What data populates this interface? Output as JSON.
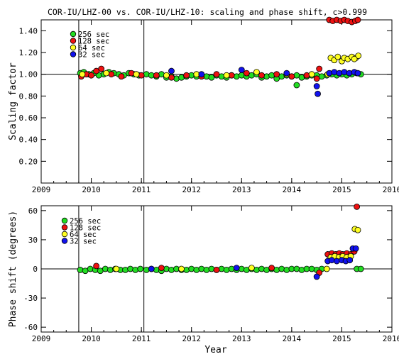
{
  "title": "COR-IU/LHZ-00 vs. COR-IU/LHZ-10: scaling and phase shift, c>0.999",
  "xlabel": "Year",
  "colors": {
    "s256": "#22dd22",
    "s128": "#ee1111",
    "s64": "#ffff22",
    "s32": "#1111ee"
  },
  "chart_data": [
    {
      "type": "scatter",
      "ylabel": "Scaling factor",
      "xlim": [
        2009,
        2016
      ],
      "ylim": [
        0,
        1.5
      ],
      "x_ticks": [
        "2009",
        "2010",
        "2011",
        "2012",
        "2013",
        "2014",
        "2015",
        "2016"
      ],
      "y_ticks": [
        "0.20",
        "0.40",
        "0.60",
        "0.80",
        "1.00",
        "1.20",
        "1.40"
      ],
      "vlines": [
        2009.75,
        2011.05
      ],
      "hline": 1.0,
      "legend": [
        "256 sec",
        "128 sec",
        "64 sec",
        "32 sec"
      ],
      "series": [
        {
          "name": "256 sec",
          "color": "#22dd22",
          "points": [
            [
              2009.78,
              1.01
            ],
            [
              2009.85,
              1.02
            ],
            [
              2009.95,
              1.0
            ],
            [
              2010.05,
              1.01
            ],
            [
              2010.15,
              0.99
            ],
            [
              2010.25,
              1.0
            ],
            [
              2010.35,
              1.02
            ],
            [
              2010.45,
              1.01
            ],
            [
              2010.55,
              1.0
            ],
            [
              2010.65,
              0.99
            ],
            [
              2010.75,
              1.01
            ],
            [
              2010.85,
              1.0
            ],
            [
              2010.95,
              0.99
            ],
            [
              2011.1,
              1.0
            ],
            [
              2011.2,
              0.99
            ],
            [
              2011.3,
              0.98
            ],
            [
              2011.4,
              1.0
            ],
            [
              2011.5,
              0.97
            ],
            [
              2011.6,
              0.98
            ],
            [
              2011.7,
              0.96
            ],
            [
              2011.8,
              0.97
            ],
            [
              2011.9,
              0.98
            ],
            [
              2012.0,
              0.99
            ],
            [
              2012.1,
              0.98
            ],
            [
              2012.2,
              0.99
            ],
            [
              2012.3,
              0.98
            ],
            [
              2012.4,
              0.97
            ],
            [
              2012.5,
              0.99
            ],
            [
              2012.6,
              0.98
            ],
            [
              2012.7,
              0.97
            ],
            [
              2012.8,
              0.99
            ],
            [
              2012.9,
              0.98
            ],
            [
              2013.0,
              0.99
            ],
            [
              2013.1,
              0.98
            ],
            [
              2013.2,
              0.99
            ],
            [
              2013.3,
              1.0
            ],
            [
              2013.4,
              0.97
            ],
            [
              2013.5,
              0.98
            ],
            [
              2013.6,
              0.99
            ],
            [
              2013.7,
              0.96
            ],
            [
              2013.8,
              0.98
            ],
            [
              2013.9,
              0.99
            ],
            [
              2014.0,
              0.98
            ],
            [
              2014.1,
              0.99
            ],
            [
              2014.2,
              0.97
            ],
            [
              2014.3,
              0.98
            ],
            [
              2014.4,
              0.99
            ],
            [
              2014.5,
              0.99
            ],
            [
              2014.6,
              0.98
            ],
            [
              2014.7,
              0.99
            ],
            [
              2014.8,
              1.0
            ],
            [
              2014.9,
              0.99
            ],
            [
              2015.0,
              1.0
            ],
            [
              2015.1,
              0.99
            ],
            [
              2015.2,
              1.0
            ],
            [
              2015.3,
              1.01
            ],
            [
              2015.38,
              1.0
            ],
            [
              2014.1,
              0.9
            ]
          ]
        },
        {
          "name": "128 sec",
          "color": "#ee1111",
          "points": [
            [
              2009.8,
              0.98
            ],
            [
              2009.9,
              1.0
            ],
            [
              2010.0,
              0.99
            ],
            [
              2010.1,
              1.03
            ],
            [
              2010.2,
              1.05
            ],
            [
              2010.4,
              1.0
            ],
            [
              2010.6,
              0.98
            ],
            [
              2010.8,
              1.01
            ],
            [
              2011.0,
              0.99
            ],
            [
              2011.3,
              0.99
            ],
            [
              2011.6,
              0.97
            ],
            [
              2011.9,
              0.99
            ],
            [
              2012.2,
              0.98
            ],
            [
              2012.5,
              1.0
            ],
            [
              2012.8,
              0.99
            ],
            [
              2013.1,
              1.01
            ],
            [
              2013.4,
              0.99
            ],
            [
              2013.7,
              1.0
            ],
            [
              2014.0,
              0.98
            ],
            [
              2014.3,
              0.99
            ],
            [
              2014.55,
              1.05
            ],
            [
              2014.5,
              0.96
            ],
            [
              2014.75,
              1.5
            ],
            [
              2014.82,
              1.49
            ],
            [
              2014.9,
              1.5
            ],
            [
              2014.98,
              1.49
            ],
            [
              2015.05,
              1.5
            ],
            [
              2015.12,
              1.49
            ],
            [
              2015.2,
              1.48
            ],
            [
              2015.27,
              1.49
            ],
            [
              2015.32,
              1.5
            ]
          ]
        },
        {
          "name": "64 sec",
          "color": "#ffff22",
          "points": [
            [
              2009.82,
              1.0
            ],
            [
              2010.3,
              1.01
            ],
            [
              2010.9,
              1.0
            ],
            [
              2011.5,
              0.99
            ],
            [
              2012.1,
              1.0
            ],
            [
              2012.7,
              0.99
            ],
            [
              2013.3,
              1.02
            ],
            [
              2013.9,
              1.0
            ],
            [
              2014.4,
              1.0
            ],
            [
              2014.72,
              1.0
            ],
            [
              2014.78,
              1.15
            ],
            [
              2014.85,
              1.13
            ],
            [
              2014.92,
              1.16
            ],
            [
              2015.0,
              1.12
            ],
            [
              2015.05,
              1.15
            ],
            [
              2015.12,
              1.14
            ],
            [
              2015.2,
              1.16
            ],
            [
              2015.28,
              1.15
            ],
            [
              2015.33,
              1.17
            ],
            [
              2015.25,
              1.14
            ]
          ]
        },
        {
          "name": "32 sec",
          "color": "#1111ee",
          "points": [
            [
              2011.6,
              1.03
            ],
            [
              2012.2,
              1.0
            ],
            [
              2013.0,
              1.04
            ],
            [
              2013.9,
              1.01
            ],
            [
              2014.5,
              0.89
            ],
            [
              2014.52,
              0.82
            ],
            [
              2014.75,
              1.01
            ],
            [
              2014.85,
              1.02
            ],
            [
              2014.95,
              1.01
            ],
            [
              2015.05,
              1.02
            ],
            [
              2015.15,
              1.01
            ],
            [
              2015.25,
              1.02
            ],
            [
              2015.32,
              1.01
            ]
          ]
        }
      ]
    },
    {
      "type": "scatter",
      "ylabel": "Phase shift (degrees)",
      "xlim": [
        2009,
        2016
      ],
      "ylim": [
        -65,
        65
      ],
      "x_ticks": [
        "2009",
        "2010",
        "2011",
        "2012",
        "2013",
        "2014",
        "2015",
        "2016"
      ],
      "y_ticks": [
        "-60",
        "-30",
        "0",
        "30",
        "60"
      ],
      "vlines": [
        2009.75,
        2011.05
      ],
      "hline": 0,
      "legend": [
        "256 sec",
        "128 sec",
        "64 sec",
        "32 sec"
      ],
      "series": [
        {
          "name": "256 sec",
          "color": "#22dd22",
          "points": [
            [
              2009.78,
              -1
            ],
            [
              2009.88,
              -2
            ],
            [
              2009.98,
              0
            ],
            [
              2010.08,
              -1
            ],
            [
              2010.18,
              -2
            ],
            [
              2010.28,
              0
            ],
            [
              2010.38,
              -1
            ],
            [
              2010.48,
              0
            ],
            [
              2010.58,
              -1
            ],
            [
              2010.68,
              -1
            ],
            [
              2010.78,
              0
            ],
            [
              2010.88,
              -1
            ],
            [
              2010.98,
              0
            ],
            [
              2011.1,
              -1
            ],
            [
              2011.2,
              0
            ],
            [
              2011.3,
              -1
            ],
            [
              2011.4,
              -2
            ],
            [
              2011.5,
              0
            ],
            [
              2011.6,
              -1
            ],
            [
              2011.7,
              0
            ],
            [
              2011.8,
              -1
            ],
            [
              2011.9,
              -1
            ],
            [
              2012.0,
              0
            ],
            [
              2012.1,
              -1
            ],
            [
              2012.2,
              0
            ],
            [
              2012.3,
              -1
            ],
            [
              2012.4,
              0
            ],
            [
              2012.5,
              -1
            ],
            [
              2012.6,
              0
            ],
            [
              2012.7,
              -1
            ],
            [
              2012.8,
              0
            ],
            [
              2012.9,
              -1
            ],
            [
              2013.0,
              0
            ],
            [
              2013.1,
              -1
            ],
            [
              2013.2,
              0
            ],
            [
              2013.3,
              -1
            ],
            [
              2013.4,
              0
            ],
            [
              2013.5,
              -1
            ],
            [
              2013.6,
              0
            ],
            [
              2013.7,
              -1
            ],
            [
              2013.8,
              0
            ],
            [
              2013.9,
              -1
            ],
            [
              2014.0,
              0
            ],
            [
              2014.1,
              0
            ],
            [
              2014.2,
              -1
            ],
            [
              2014.3,
              0
            ],
            [
              2014.4,
              0
            ],
            [
              2014.5,
              -1
            ],
            [
              2014.6,
              0
            ],
            [
              2015.3,
              0
            ],
            [
              2015.38,
              0
            ]
          ]
        },
        {
          "name": "128 sec",
          "color": "#ee1111",
          "points": [
            [
              2010.1,
              3
            ],
            [
              2011.4,
              1
            ],
            [
              2012.5,
              -1
            ],
            [
              2013.6,
              1
            ],
            [
              2014.55,
              -4
            ],
            [
              2014.72,
              15
            ],
            [
              2014.8,
              16
            ],
            [
              2014.88,
              15
            ],
            [
              2014.95,
              16
            ],
            [
              2015.02,
              15
            ],
            [
              2015.1,
              16
            ],
            [
              2015.18,
              15
            ],
            [
              2015.25,
              18
            ],
            [
              2015.3,
              64
            ]
          ]
        },
        {
          "name": "64 sec",
          "color": "#ffff22",
          "points": [
            [
              2010.5,
              0
            ],
            [
              2011.8,
              0
            ],
            [
              2013.2,
              1
            ],
            [
              2014.7,
              0
            ],
            [
              2014.78,
              12
            ],
            [
              2014.86,
              13
            ],
            [
              2014.94,
              12
            ],
            [
              2015.02,
              13
            ],
            [
              2015.1,
              12
            ],
            [
              2015.18,
              13
            ],
            [
              2015.26,
              41
            ],
            [
              2015.32,
              40
            ]
          ]
        },
        {
          "name": "32 sec",
          "color": "#1111ee",
          "points": [
            [
              2011.2,
              0
            ],
            [
              2012.9,
              1
            ],
            [
              2014.5,
              -8
            ],
            [
              2014.72,
              8
            ],
            [
              2014.8,
              9
            ],
            [
              2014.9,
              8
            ],
            [
              2015.0,
              9
            ],
            [
              2015.08,
              8
            ],
            [
              2015.16,
              9
            ],
            [
              2015.22,
              21
            ],
            [
              2015.28,
              21
            ]
          ]
        }
      ]
    }
  ]
}
